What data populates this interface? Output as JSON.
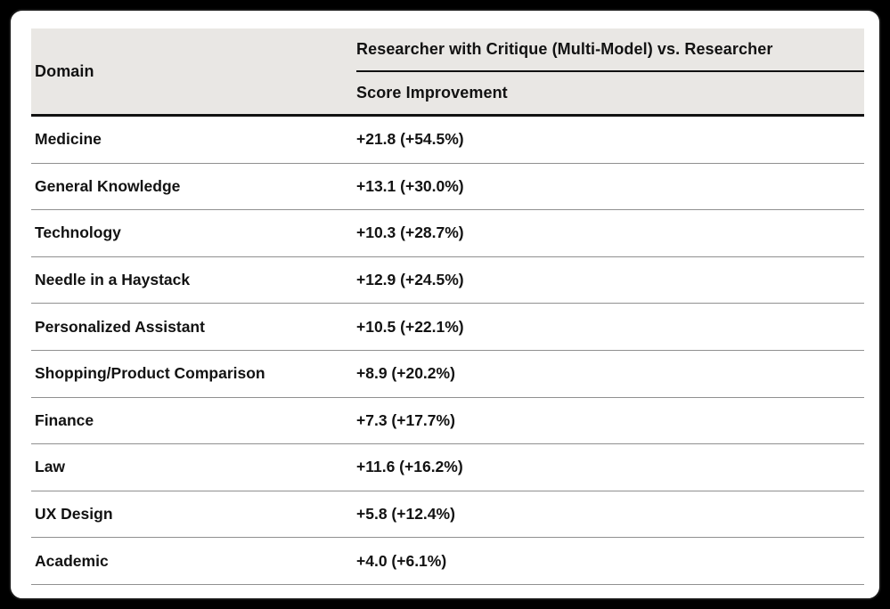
{
  "table": {
    "header": {
      "domain_label": "Domain",
      "group_label": "Researcher with Critique (Multi-Model) vs. Researcher",
      "sub_label": "Score Improvement"
    },
    "rows": [
      {
        "domain": "Medicine",
        "score_improvement": "+21.8 (+54.5%)"
      },
      {
        "domain": "General Knowledge",
        "score_improvement": "+13.1 (+30.0%)"
      },
      {
        "domain": "Technology",
        "score_improvement": "+10.3 (+28.7%)"
      },
      {
        "domain": "Needle in a Haystack",
        "score_improvement": "+12.9 (+24.5%)"
      },
      {
        "domain": "Personalized Assistant",
        "score_improvement": "+10.5 (+22.1%)"
      },
      {
        "domain": "Shopping/Product Comparison",
        "score_improvement": "+8.9 (+20.2%)"
      },
      {
        "domain": "Finance",
        "score_improvement": "+7.3 (+17.7%)"
      },
      {
        "domain": "Law",
        "score_improvement": "+11.6 (+16.2%)"
      },
      {
        "domain": "UX Design",
        "score_improvement": "+5.8 (+12.4%)"
      },
      {
        "domain": "Academic",
        "score_improvement": "+4.0 (+6.1%)"
      }
    ],
    "colors": {
      "page_background": "#000000",
      "card_background": "#ffffff",
      "header_background": "#e9e7e4",
      "heavy_rule": "#111111",
      "light_rule": "#909090",
      "text": "#121212"
    }
  }
}
